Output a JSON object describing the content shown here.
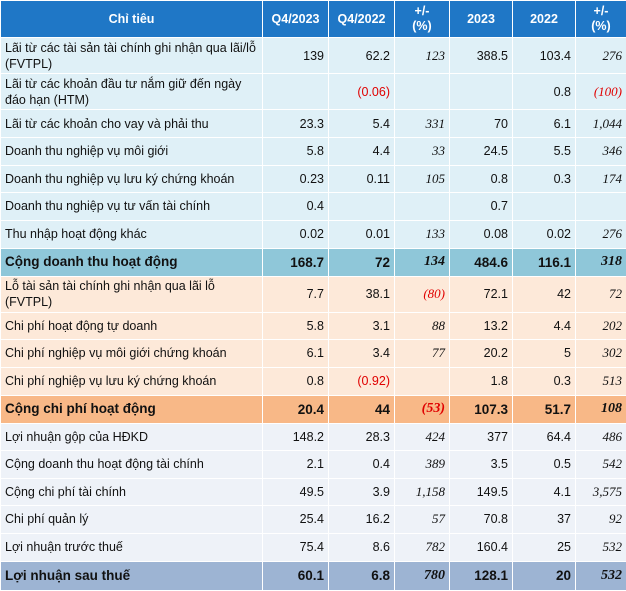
{
  "header": [
    "Chỉ tiêu",
    "Q4/2023",
    "Q4/2022",
    "+/-\n(%)",
    "2023",
    "2022",
    "+/-\n(%)"
  ],
  "header_lines": [
    [
      "Chỉ tiêu"
    ],
    [
      "Q4/2023"
    ],
    [
      "Q4/2022"
    ],
    [
      "+/-",
      "(%)"
    ],
    [
      "2023"
    ],
    [
      "2022"
    ],
    [
      "+/-",
      "(%)"
    ]
  ],
  "rows": [
    {
      "label": "Lãi từ các tài sản tài chính ghi nhận qua lãi/lỗ (FVTPL)",
      "q4_2023": "139",
      "q4_2022": "62.2",
      "chg_q": "123",
      "y2023": "388.5",
      "y2022": "103.4",
      "chg_y": "276"
    },
    {
      "label": "Lãi từ các khoản đầu tư nắm giữ đến ngày đáo hạn (HTM)",
      "q4_2023": "",
      "q4_2022": "(0.06)",
      "chg_q": "",
      "y2023": "",
      "y2022": "0.8",
      "chg_y": "(100)"
    },
    {
      "label": "Lãi từ các khoản cho vay và phải thu",
      "q4_2023": "23.3",
      "q4_2022": "5.4",
      "chg_q": "331",
      "y2023": "70",
      "y2022": "6.1",
      "chg_y": "1,044"
    },
    {
      "label": "Doanh thu nghiệp vụ môi giới",
      "q4_2023": "5.8",
      "q4_2022": "4.4",
      "chg_q": "33",
      "y2023": "24.5",
      "y2022": "5.5",
      "chg_y": "346"
    },
    {
      "label": "Doanh thu nghiệp vụ lưu ký chứng khoán",
      "q4_2023": "0.23",
      "q4_2022": "0.11",
      "chg_q": "105",
      "y2023": "0.8",
      "y2022": "0.3",
      "chg_y": "174"
    },
    {
      "label": "Doanh thu nghiệp vụ tư vấn tài chính",
      "q4_2023": "0.4",
      "q4_2022": "",
      "chg_q": "",
      "y2023": "0.7",
      "y2022": "",
      "chg_y": ""
    },
    {
      "label": "Thu nhập hoạt động khác",
      "q4_2023": "0.02",
      "q4_2022": "0.01",
      "chg_q": "133",
      "y2023": "0.08",
      "y2022": "0.02",
      "chg_y": "276"
    },
    {
      "label": "Cộng doanh thu hoạt động",
      "q4_2023": "168.7",
      "q4_2022": "72",
      "chg_q": "134",
      "y2023": "484.6",
      "y2022": "116.1",
      "chg_y": "318"
    },
    {
      "label": "Lỗ tài sản tài chính ghi nhận qua lãi lỗ (FVTPL)",
      "q4_2023": "7.7",
      "q4_2022": "38.1",
      "chg_q": "(80)",
      "y2023": "72.1",
      "y2022": "42",
      "chg_y": "72"
    },
    {
      "label": "Chi phí hoạt động tự doanh",
      "q4_2023": "5.8",
      "q4_2022": "3.1",
      "chg_q": "88",
      "y2023": "13.2",
      "y2022": "4.4",
      "chg_y": "202"
    },
    {
      "label": "Chi phí nghiệp vụ môi giới chứng khoán",
      "q4_2023": "6.1",
      "q4_2022": "3.4",
      "chg_q": "77",
      "y2023": "20.2",
      "y2022": "5",
      "chg_y": "302"
    },
    {
      "label": "Chi phí nghiệp vụ lưu ký chứng khoán",
      "q4_2023": "0.8",
      "q4_2022": "(0.92)",
      "chg_q": "",
      "y2023": "1.8",
      "y2022": "0.3",
      "chg_y": "513"
    },
    {
      "label": "Cộng chi phí hoạt động",
      "q4_2023": "20.4",
      "q4_2022": "44",
      "chg_q": "(53)",
      "y2023": "107.3",
      "y2022": "51.7",
      "chg_y": "108"
    },
    {
      "label": "Lợi nhuận gộp của HĐKD",
      "q4_2023": "148.2",
      "q4_2022": "28.3",
      "chg_q": "424",
      "y2023": "377",
      "y2022": "64.4",
      "chg_y": "486"
    },
    {
      "label": "Cộng doanh thu hoạt động tài chính",
      "q4_2023": "2.1",
      "q4_2022": "0.4",
      "chg_q": "389",
      "y2023": "3.5",
      "y2022": "0.5",
      "chg_y": "542"
    },
    {
      "label": "Cộng chi phí tài chính",
      "q4_2023": "49.5",
      "q4_2022": "3.9",
      "chg_q": "1,158",
      "y2023": "149.5",
      "y2022": "4.1",
      "chg_y": "3,575"
    },
    {
      "label": "Chi phí quản lý",
      "q4_2023": "25.4",
      "q4_2022": "16.2",
      "chg_q": "57",
      "y2023": "70.8",
      "y2022": "37",
      "chg_y": "92"
    },
    {
      "label": "Lợi nhuận trước thuế",
      "q4_2023": "75.4",
      "q4_2022": "8.6",
      "chg_q": "782",
      "y2023": "160.4",
      "y2022": "25",
      "chg_y": "532"
    },
    {
      "label": "Lợi nhuận sau thuế",
      "q4_2023": "60.1",
      "q4_2022": "6.8",
      "chg_q": "780",
      "y2023": "128.1",
      "y2022": "20",
      "chg_y": "532"
    }
  ],
  "colors": {
    "header_bg": "#1f77c6",
    "income_rows_bg": "#dff0f7",
    "income_total_bg": "#8fc7d9",
    "expense_rows_bg": "#fde9d9",
    "expense_total_bg": "#f8b887",
    "other_rows_bg": "#eef2f8",
    "net_total_bg": "#9db4d3",
    "negative_text": "#e00000"
  }
}
